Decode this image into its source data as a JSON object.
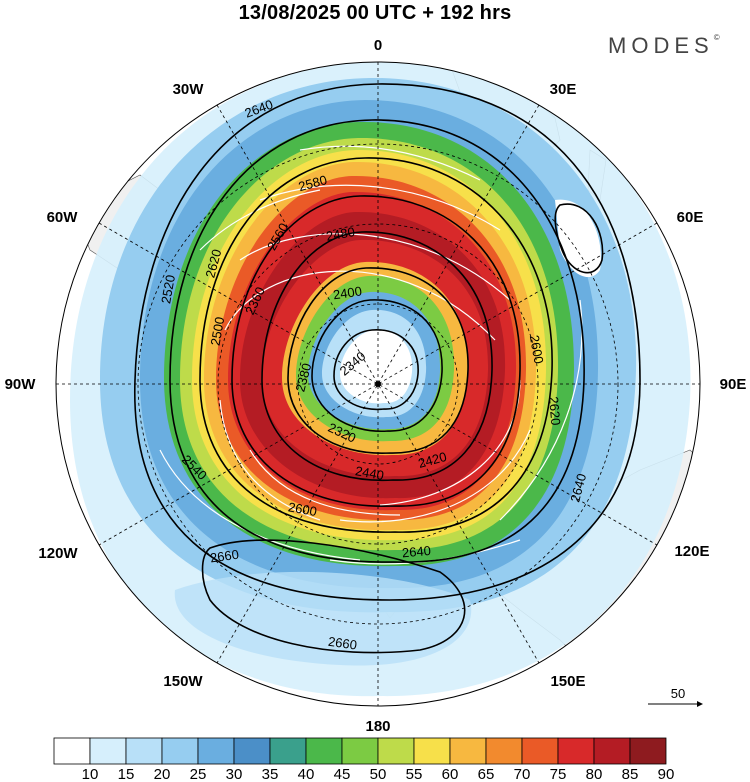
{
  "title": "13/08/2025  00 UTC  + 192 hrs",
  "brand": "MODES",
  "brand_mark": "©",
  "longitude_labels": {
    "n": "0",
    "ne": "30E",
    "ene": "60E",
    "e": "90E",
    "ese": "120E",
    "se": "150E",
    "s": "180",
    "sw": "150W",
    "wsw": "120W",
    "w": "90W",
    "wnw": "60W",
    "nw": "30W"
  },
  "contour_labels": [
    "2640",
    "2580",
    "2560",
    "2480",
    "2400",
    "2380",
    "2340",
    "2600",
    "2620",
    "2640",
    "2660",
    "2660",
    "2640",
    "2600",
    "2540",
    "2500",
    "2420",
    "2440",
    "2360",
    "2320",
    "2620",
    "2520"
  ],
  "vector_reference": "50",
  "colorbar": {
    "labels": [
      "10",
      "15",
      "20",
      "25",
      "30",
      "35",
      "40",
      "45",
      "50",
      "55",
      "60",
      "65",
      "70",
      "75",
      "80",
      "85",
      "90"
    ],
    "colors": [
      "#ffffff",
      "#d6effc",
      "#b8e0f8",
      "#96cdf0",
      "#6aaee0",
      "#4b8fc8",
      "#3aa08c",
      "#4bb84a",
      "#7ccb43",
      "#bedb4a",
      "#f7e04a",
      "#f7b840",
      "#f28a2e",
      "#ea5a27",
      "#d8292a",
      "#b41c24",
      "#8e1b1f"
    ]
  },
  "colors": {
    "land": "#f0f0f0",
    "contour": "#000000",
    "vector": "#ffffff"
  }
}
